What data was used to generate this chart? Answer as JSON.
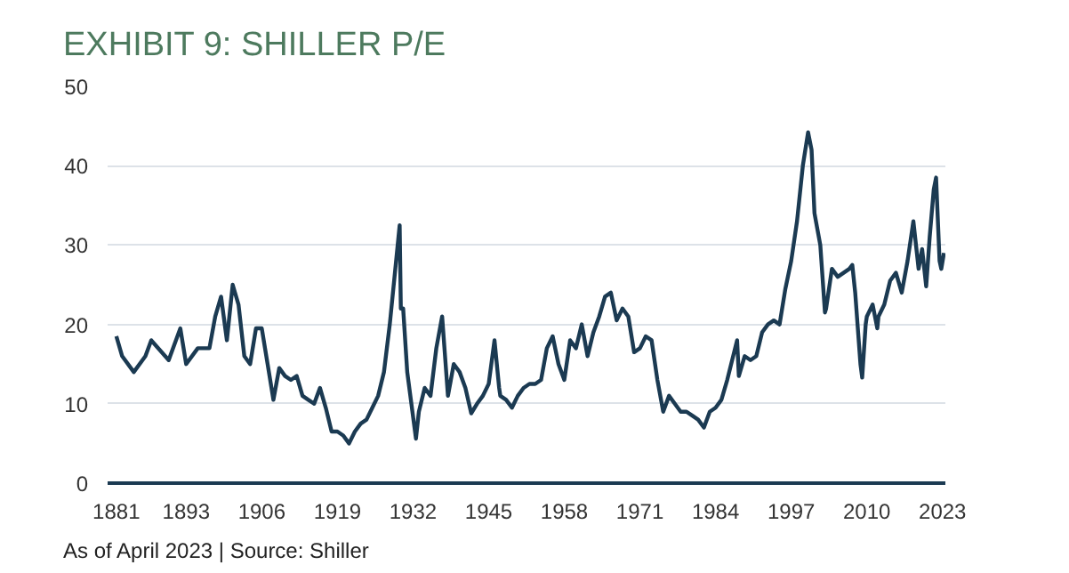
{
  "chart_data": {
    "type": "line",
    "title": "EXHIBIT 9: SHILLER P/E",
    "annotations": [
      "As of April 2023 | Source: Shiller"
    ],
    "x": [
      1881,
      1882,
      1884,
      1886,
      1887,
      1890,
      1892,
      1893,
      1895,
      1897,
      1898,
      1899,
      1900,
      1901,
      1902,
      1903,
      1904,
      1905,
      1906,
      1907,
      1908,
      1909,
      1910,
      1911,
      1912,
      1913,
      1914,
      1915,
      1916,
      1917,
      1918,
      1919,
      1920,
      1921,
      1922,
      1923,
      1924,
      1925,
      1926,
      1927,
      1928,
      1929.7,
      1929.9,
      1930.3,
      1931,
      1932.5,
      1933,
      1934,
      1935,
      1936,
      1937,
      1937.8,
      1938,
      1939,
      1940,
      1941,
      1942,
      1943,
      1944,
      1945,
      1946,
      1946.8,
      1947,
      1948,
      1949,
      1950,
      1951,
      1952,
      1953,
      1954,
      1955,
      1956,
      1957,
      1958,
      1959,
      1960,
      1961,
      1962,
      1963,
      1964,
      1965,
      1966,
      1967,
      1968,
      1969,
      1970,
      1971,
      1972,
      1973,
      1974,
      1975,
      1976,
      1977,
      1978,
      1979,
      1980,
      1981,
      1982,
      1983,
      1984,
      1985,
      1986,
      1987.7,
      1988,
      1989,
      1990,
      1991,
      1992,
      1993,
      1994,
      1995,
      1996,
      1997,
      1998,
      1999,
      1999.9,
      2000.5,
      2001,
      2002,
      2002.8,
      2003,
      2004,
      2005,
      2006,
      2007,
      2007.5,
      2008,
      2008.9,
      2009.2,
      2009.8,
      2010,
      2011,
      2011.8,
      2012,
      2013,
      2014,
      2015,
      2016,
      2017,
      2018,
      2018.9,
      2019.5,
      2020.2,
      2020.8,
      2021.5,
      2021.9,
      2022.5,
      2022.8,
      2023.25
    ],
    "series": [
      {
        "color": "#1b3a52",
        "values": [
          18.5,
          16,
          14,
          16,
          18,
          15.5,
          19.5,
          15,
          17,
          17,
          21,
          23.5,
          18,
          25,
          22.5,
          16,
          15,
          19.5,
          19.5,
          15,
          10.5,
          14.5,
          13.5,
          13,
          13.5,
          11,
          10.5,
          10,
          12,
          9.5,
          6.5,
          6.5,
          6,
          5,
          6.5,
          7.5,
          8,
          9.5,
          11,
          14,
          20,
          32.5,
          22,
          22,
          14,
          5.6,
          9,
          12,
          11,
          17,
          21,
          13,
          11,
          15,
          14,
          12,
          8.8,
          10,
          11,
          12.5,
          18,
          12,
          11,
          10.5,
          9.5,
          11,
          12,
          12.5,
          12.5,
          13,
          17,
          18.5,
          15,
          13,
          18,
          17,
          20,
          16,
          19,
          21,
          23.5,
          24,
          20.5,
          22,
          21,
          16.5,
          17,
          18.5,
          18,
          13,
          9,
          11,
          10,
          9,
          9,
          8.5,
          8,
          7,
          9,
          9.5,
          10.5,
          13,
          18,
          13.5,
          16,
          15.5,
          16,
          19,
          20,
          20.5,
          20,
          24.5,
          28,
          33,
          40,
          44.2,
          42,
          34,
          30,
          21.5,
          22,
          27,
          26,
          26.5,
          27,
          27.5,
          24,
          15,
          13.3,
          20,
          21,
          22.5,
          19.5,
          21,
          22.5,
          25.5,
          26.5,
          24,
          28,
          33,
          27,
          29.5,
          24.8,
          31,
          37,
          38.5,
          28,
          27,
          29
        ]
      }
    ],
    "xlim": [
      1879.5,
      2023.5
    ],
    "ylim": [
      0,
      50
    ],
    "xticks": [
      1881,
      1893,
      1906,
      1919,
      1932,
      1945,
      1958,
      1971,
      1984,
      1997,
      2010,
      2023
    ],
    "yticks": [
      0,
      10,
      20,
      30,
      40,
      50
    ],
    "grid": "y",
    "line_style": "solid",
    "marker": "none"
  }
}
